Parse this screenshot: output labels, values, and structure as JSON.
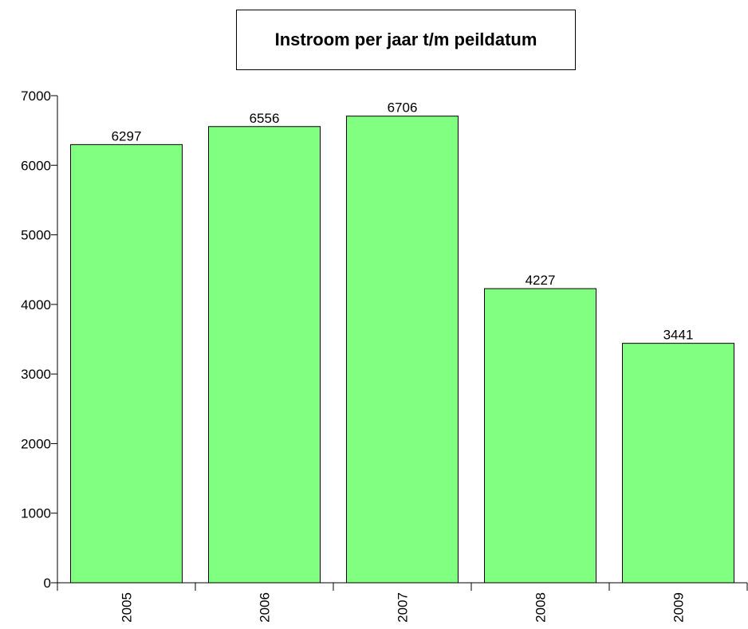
{
  "chart_data": {
    "type": "bar",
    "title": "Instroom per jaar t/m peildatum",
    "categories": [
      "2005",
      "2006",
      "2007",
      "2008",
      "2009"
    ],
    "values": [
      6297,
      6556,
      6706,
      4227,
      3441
    ],
    "data_labels": [
      "6297",
      "6556",
      "6706",
      "4227",
      "3441"
    ],
    "y_ticks": [
      "0",
      "1000",
      "2000",
      "3000",
      "4000",
      "5000",
      "6000",
      "7000"
    ],
    "ylim": [
      0,
      7000
    ],
    "xlabel": "",
    "ylabel": "",
    "grid": false,
    "legend": "none",
    "colors": {
      "bar_fill": "#80ff80",
      "bar_stroke": "#000000",
      "axis": "#000000"
    }
  }
}
